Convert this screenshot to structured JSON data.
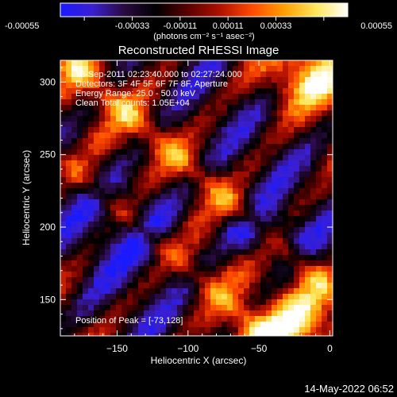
{
  "colorbar": {
    "tick_labels": [
      "-0.00055",
      "-0.00033",
      "-0.00011",
      "0.00011",
      "0.00033",
      "0.00055"
    ],
    "unit_label": "(photons cm⁻² s⁻¹ asec⁻²)",
    "range": [
      -0.00055,
      0.00055
    ],
    "palette": [
      "#1a1aff",
      "#3a1fd0",
      "#2a0a40",
      "#000000",
      "#5a0000",
      "#b01000",
      "#ff4a00",
      "#ff9e00",
      "#ffe65a",
      "#ffffff"
    ]
  },
  "title": "Reconstructed RHESSI Image",
  "annotation_lines": [
    "18-Sep-2011 02:23:40.000 to 02:27:24.000",
    "Detectors: 3F 4F 5F 6F 7F 8F, Aperture",
    "Energy Range: 25.0 - 50.0 keV",
    "Clean    Total counts: 1.05E+04"
  ],
  "peak_label": "Position of Peak = [-73,128]",
  "chart_data": {
    "type": "heatmap",
    "xlabel": "Heliocentric X (arcsec)",
    "ylabel": "Heliocentric Y (arcsec)",
    "xlim": [
      -190,
      2
    ],
    "ylim": [
      125,
      315
    ],
    "xticks": [
      -150,
      -100,
      -50,
      0
    ],
    "yticks": [
      150,
      200,
      250,
      300
    ],
    "xticklabels": [
      "−150",
      "−100",
      "−50",
      "0"
    ],
    "yticklabels": [
      "150",
      "200",
      "250",
      "300"
    ]
  },
  "timestamp": "14-May-2022 06:52"
}
